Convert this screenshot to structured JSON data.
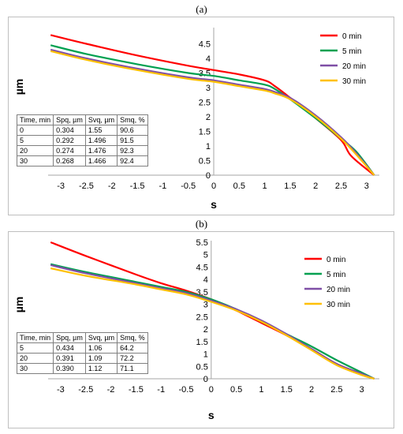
{
  "charts": [
    {
      "label": "(a)",
      "type": "line",
      "xlabel": "s",
      "ylabel": "µm",
      "xlim": [
        -3.25,
        3.25
      ],
      "ylim": [
        0,
        5
      ],
      "xticks": [
        "-3",
        "-2.5",
        "-2",
        "-1.5",
        "-1",
        "-0.5",
        "0",
        "0.5",
        "1",
        "1.5",
        "2",
        "2.5",
        "3"
      ],
      "yticks": [
        "0",
        "0.5",
        "1",
        "1.5",
        "2",
        "2.5",
        "3",
        "3.5",
        "4",
        "4.5"
      ],
      "legend_position": "top-right",
      "series": [
        {
          "name": "0 min",
          "color": "#ff0000",
          "x": [
            -3.2,
            -2.5,
            -1.5,
            -0.5,
            0,
            0.5,
            1.0,
            1.2,
            1.5,
            2.0,
            2.5,
            2.7,
            3.15
          ],
          "y": [
            4.8,
            4.5,
            4.1,
            3.75,
            3.6,
            3.45,
            3.25,
            3.05,
            2.65,
            1.95,
            1.2,
            0.65,
            0.0
          ]
        },
        {
          "name": "5 min",
          "color": "#00a050",
          "x": [
            -3.2,
            -2.5,
            -1.5,
            -0.5,
            0,
            0.5,
            1.0,
            1.2,
            1.5,
            2.0,
            2.5,
            2.8,
            3.15
          ],
          "y": [
            4.45,
            4.15,
            3.8,
            3.5,
            3.4,
            3.25,
            3.1,
            2.95,
            2.6,
            1.95,
            1.25,
            0.8,
            0.0
          ]
        },
        {
          "name": "20 min",
          "color": "#7f4fa6",
          "x": [
            -3.2,
            -2.5,
            -1.5,
            -0.5,
            0,
            0.5,
            1.0,
            1.2,
            1.5,
            2.0,
            2.5,
            2.8,
            3.15
          ],
          "y": [
            4.3,
            4.0,
            3.65,
            3.35,
            3.25,
            3.1,
            2.95,
            2.85,
            2.65,
            2.05,
            1.3,
            0.75,
            0.0
          ]
        },
        {
          "name": "30 min",
          "color": "#ffc000",
          "x": [
            -3.2,
            -2.5,
            -1.5,
            -0.5,
            0,
            0.5,
            1.0,
            1.2,
            1.5,
            2.0,
            2.5,
            2.8,
            3.15
          ],
          "y": [
            4.25,
            3.95,
            3.6,
            3.3,
            3.2,
            3.05,
            2.9,
            2.8,
            2.6,
            2.0,
            1.25,
            0.7,
            0.0
          ]
        }
      ],
      "table": {
        "headers": [
          "Time, min",
          "Spq, µm",
          "Svq, µm",
          "Smq, %"
        ],
        "rows": [
          [
            "0",
            "0.304",
            "1.55",
            "90.6"
          ],
          [
            "5",
            "0.292",
            "1.496",
            "91.5"
          ],
          [
            "20",
            "0.274",
            "1.476",
            "92.3"
          ],
          [
            "30",
            "0.268",
            "1.466",
            "92.4"
          ]
        ]
      }
    },
    {
      "label": "(b)",
      "type": "line",
      "xlabel": "s",
      "ylabel": "µm",
      "xlim": [
        -3.25,
        3.35
      ],
      "ylim": [
        0,
        5.5
      ],
      "xticks": [
        "-3",
        "-2.5",
        "-2",
        "-1.5",
        "-1",
        "-0.5",
        "0",
        "0.5",
        "1",
        "1.5",
        "2",
        "2.5",
        "3"
      ],
      "yticks": [
        "0",
        "0.5",
        "1",
        "1.5",
        "2",
        "2.5",
        "3",
        "3.5",
        "4",
        "4.5",
        "5",
        "5.5"
      ],
      "legend_position": "top-right",
      "series": [
        {
          "name": "0 min",
          "color": "#ff0000",
          "x": [
            -3.2,
            -2.5,
            -1.5,
            -1.0,
            -0.5,
            0,
            0.5,
            1.0,
            1.5,
            2.0,
            2.5,
            3.0,
            3.25
          ],
          "y": [
            5.5,
            4.95,
            4.2,
            3.85,
            3.55,
            3.2,
            2.75,
            2.25,
            1.75,
            1.2,
            0.6,
            0.2,
            0.0
          ]
        },
        {
          "name": "5 min",
          "color": "#00a050",
          "x": [
            -3.2,
            -2.5,
            -1.5,
            -1.0,
            -0.5,
            0,
            0.5,
            1.0,
            1.5,
            2.0,
            2.5,
            3.0,
            3.25
          ],
          "y": [
            4.62,
            4.3,
            3.9,
            3.7,
            3.5,
            3.2,
            2.8,
            2.3,
            1.8,
            1.3,
            0.75,
            0.25,
            0.0
          ]
        },
        {
          "name": "20 min",
          "color": "#7f4fa6",
          "x": [
            -3.2,
            -2.5,
            -1.5,
            -1.0,
            -0.5,
            0,
            0.5,
            1.0,
            1.5,
            2.0,
            2.5,
            3.0,
            3.25
          ],
          "y": [
            4.58,
            4.25,
            3.85,
            3.65,
            3.45,
            3.15,
            2.8,
            2.35,
            1.8,
            1.2,
            0.6,
            0.2,
            0.0
          ]
        },
        {
          "name": "30 min",
          "color": "#ffc000",
          "x": [
            -3.2,
            -2.5,
            -1.5,
            -1.0,
            -0.5,
            0,
            0.5,
            1.0,
            1.5,
            2.0,
            2.5,
            3.0,
            3.25
          ],
          "y": [
            4.45,
            4.15,
            3.8,
            3.6,
            3.4,
            3.1,
            2.75,
            2.3,
            1.75,
            1.15,
            0.55,
            0.15,
            0.0
          ]
        }
      ],
      "table": {
        "headers": [
          "Time, min",
          "Spq, µm",
          "Svq, µm",
          "Smq, %"
        ],
        "rows": [
          [
            "5",
            "0.434",
            "1.06",
            "64.2"
          ],
          [
            "20",
            "0.391",
            "1.09",
            "72.2"
          ],
          [
            "30",
            "0.390",
            "1.12",
            "71.1"
          ]
        ]
      }
    }
  ]
}
